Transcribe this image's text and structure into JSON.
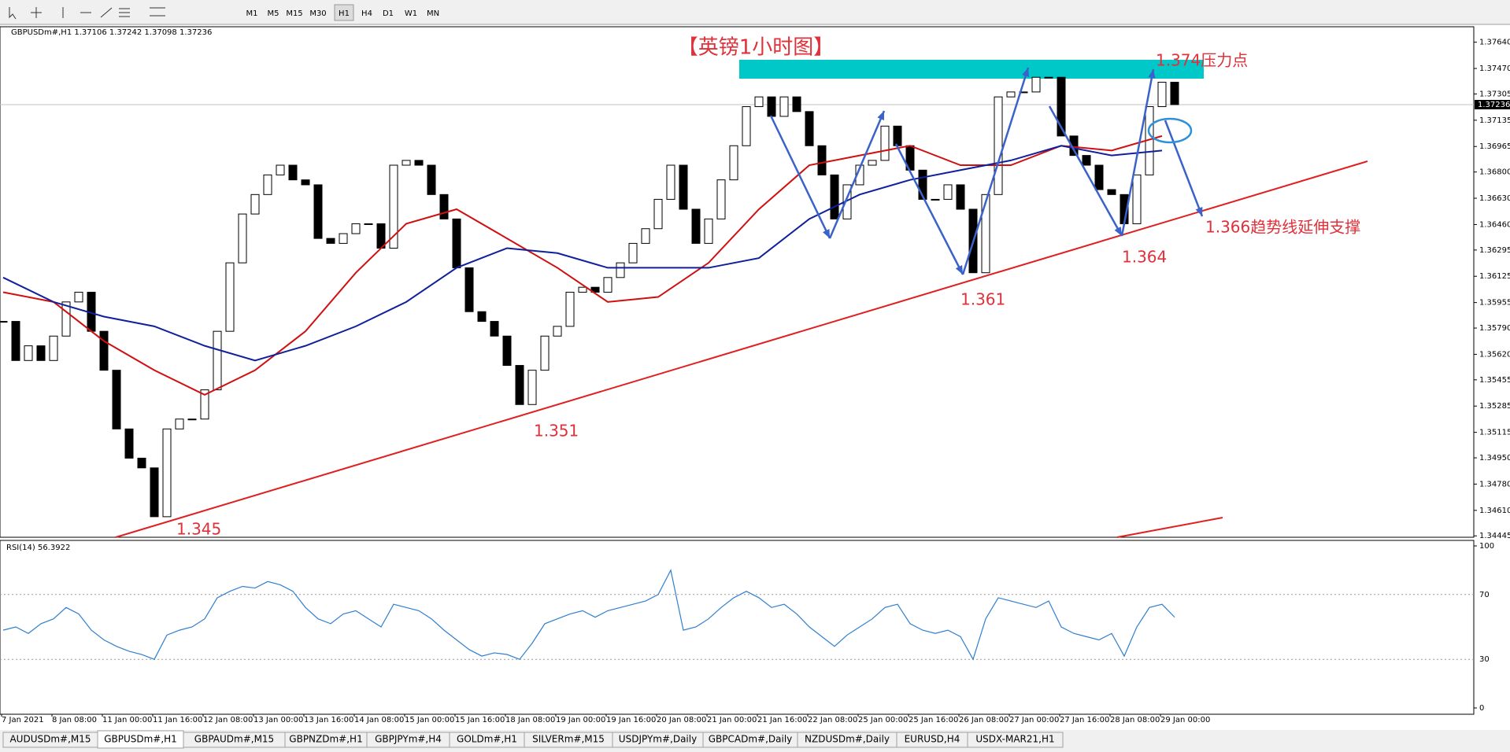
{
  "toolbar": {
    "timeframes": [
      "M1",
      "M5",
      "M15",
      "M30",
      "H1",
      "H4",
      "D1",
      "W1",
      "MN"
    ],
    "active": 4
  },
  "chart_data": [
    {
      "type": "candlestick",
      "header": "GBPUSDm#,H1  1.37106 1.37242 1.37098 1.37236",
      "title": "【英镑1小时图】",
      "annotations": [
        "1.374压力点",
        "1.366趋势线延伸支撑",
        "1.364",
        "1.361",
        "1.351",
        "1.345"
      ],
      "x_labels": [
        "7 Jan 2021",
        "8 Jan 08:00",
        "11 Jan 00:00",
        "11 Jan 16:00",
        "12 Jan 08:00",
        "13 Jan 00:00",
        "13 Jan 16:00",
        "14 Jan 08:00",
        "15 Jan 00:00",
        "15 Jan 16:00",
        "18 Jan 08:00",
        "19 Jan 00:00",
        "19 Jan 16:00",
        "20 Jan 08:00",
        "21 Jan 00:00",
        "21 Jan 16:00",
        "22 Jan 08:00",
        "25 Jan 00:00",
        "25 Jan 16:00",
        "26 Jan 08:00",
        "27 Jan 00:00",
        "27 Jan 16:00",
        "28 Jan 08:00",
        "29 Jan 00:00"
      ],
      "values": [
        1.35833,
        1.3558,
        1.35675,
        1.3558,
        1.35738,
        1.35959,
        1.36022,
        1.35769,
        1.35517,
        1.35137,
        1.34948,
        1.34885,
        1.34569,
        1.35137,
        1.35201,
        1.35201,
        1.3539,
        1.35769,
        1.36212,
        1.36528,
        1.36654,
        1.36781,
        1.36844,
        1.36749,
        1.36717,
        1.3637,
        1.36338,
        1.36401,
        1.36465,
        1.36465,
        1.36307,
        1.36844,
        1.36875,
        1.36844,
        1.36654,
        1.36496,
        1.3618,
        1.35896,
        1.35833,
        1.35738,
        1.35548,
        1.35295,
        1.35517,
        1.35738,
        1.35801,
        1.36022,
        1.36054,
        1.36022,
        1.36117,
        1.36212,
        1.36338,
        1.36433,
        1.36623,
        1.36844,
        1.36559,
        1.36338,
        1.36496,
        1.36749,
        1.3697,
        1.37223,
        1.37286,
        1.3716,
        1.37286,
        1.37191,
        1.3697,
        1.36781,
        1.36496,
        1.36717,
        1.36844,
        1.36875,
        1.37097,
        1.3697,
        1.36812,
        1.36623,
        1.36623,
        1.36717,
        1.36559,
        1.36148,
        1.36654,
        1.37286,
        1.37318,
        1.37318,
        1.37413,
        1.37413,
        1.37033,
        1.36907,
        1.36844,
        1.36686,
        1.36654,
        1.36465,
        1.36781,
        1.37223,
        1.37381,
        1.37236
      ],
      "lines": [
        {
          "color": "#d01010",
          "values": [
            1.36022,
            1.35959,
            1.35706,
            1.35517,
            1.35358,
            1.35517,
            1.35769,
            1.36148,
            1.36465,
            1.36559,
            1.3637,
            1.3618,
            1.35959,
            1.35991,
            1.36212,
            1.36559,
            1.36844,
            1.36907,
            1.3697,
            1.36844,
            1.36844,
            1.3697,
            1.36939,
            1.37033
          ]
        },
        {
          "color": "#10209a",
          "values": [
            1.36117,
            1.35959,
            1.35864,
            1.35801,
            1.35675,
            1.3558,
            1.35675,
            1.35801,
            1.35959,
            1.3618,
            1.36307,
            1.36275,
            1.3618,
            1.3618,
            1.3618,
            1.36243,
            1.36496,
            1.36654,
            1.36749,
            1.36812,
            1.36875,
            1.3697,
            1.36907,
            1.36939
          ]
        }
      ],
      "current_price": {
        "value": 1.37236,
        "label": "1.37236"
      },
      "ylim": [
        1.34436,
        1.3774
      ],
      "yticks": [
        {
          "value": 1.3764,
          "label": "1.37640"
        },
        {
          "value": 1.3747,
          "label": "1.37470"
        },
        {
          "value": 1.37305,
          "label": "1.37305"
        },
        {
          "value": 1.37135,
          "label": "1.37135"
        },
        {
          "value": 1.36965,
          "label": "1.36965"
        },
        {
          "value": 1.368,
          "label": "1.36800"
        },
        {
          "value": 1.3663,
          "label": "1.36630"
        },
        {
          "value": 1.3646,
          "label": "1.36460"
        },
        {
          "value": 1.36295,
          "label": "1.36295"
        },
        {
          "value": 1.36125,
          "label": "1.36125"
        },
        {
          "value": 1.35955,
          "label": "1.35955"
        },
        {
          "value": 1.3579,
          "label": "1.35790"
        },
        {
          "value": 1.3562,
          "label": "1.35620"
        },
        {
          "value": 1.35455,
          "label": "1.35455"
        },
        {
          "value": 1.35285,
          "label": "1.35285"
        },
        {
          "value": 1.35115,
          "label": "1.35115"
        },
        {
          "value": 1.3495,
          "label": "1.34950"
        },
        {
          "value": 1.3478,
          "label": "1.34780"
        },
        {
          "value": 1.3461,
          "label": "1.34610"
        },
        {
          "value": 1.34445,
          "label": "1.34445"
        }
      ]
    },
    {
      "type": "line",
      "header": "RSI(14) 56.3922",
      "color": "#2f7fd0",
      "values": [
        48,
        50,
        46,
        52,
        55,
        62,
        58,
        48,
        42,
        38,
        35,
        33,
        30,
        45,
        48,
        50,
        55,
        68,
        72,
        75,
        74,
        78,
        76,
        72,
        62,
        55,
        52,
        58,
        60,
        55,
        50,
        64,
        62,
        60,
        55,
        48,
        42,
        36,
        32,
        34,
        33,
        30,
        40,
        52,
        55,
        58,
        60,
        56,
        60,
        62,
        64,
        66,
        70,
        85,
        48,
        50,
        55,
        62,
        68,
        72,
        68,
        62,
        64,
        58,
        50,
        44,
        38,
        45,
        50,
        55,
        62,
        64,
        52,
        48,
        46,
        48,
        44,
        30,
        55,
        68,
        66,
        64,
        62,
        66,
        50,
        46,
        44,
        42,
        46,
        32,
        50,
        62,
        64,
        56
      ],
      "ylim": [
        0,
        100
      ],
      "yticks": [
        100,
        70,
        30,
        0
      ]
    }
  ],
  "tabs": [
    "AUDUSDm#,M15",
    "GBPUSDm#,H1",
    "GBPAUDm#,M15",
    "GBPNZDm#,H1",
    "GBPJPYm#,H4",
    "GOLDm#,H1",
    "SILVERm#,M15",
    "USDJPYm#,Daily",
    "GBPCADm#,Daily",
    "NZDUSDm#,Daily",
    "EURUSD,H4",
    "USDX-MAR21,H1"
  ],
  "active_tab": 1
}
